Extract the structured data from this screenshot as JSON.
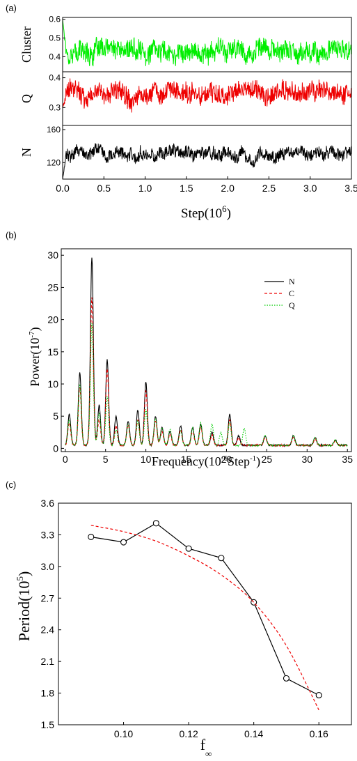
{
  "chart_data": [
    {
      "type": "line",
      "panel_label": "(a)",
      "xlabel": "Step(10",
      "xlabel_sup": "6",
      "xlabel_close": ")",
      "xlim": [
        0,
        3.5
      ],
      "xticks": [
        "0.0",
        "0.5",
        "1.0",
        "1.5",
        "2.0",
        "2.5",
        "3.0",
        "3.5"
      ],
      "subplots": [
        {
          "ylabel": "Cluster",
          "ylim": [
            0.32,
            0.61
          ],
          "yticks": [
            0.4,
            0.5,
            0.6
          ],
          "ytick_labels": [
            "0.4",
            "0.5",
            "0.6"
          ],
          "series": [
            {
              "color": "#00ee00",
              "mean": 0.43,
              "amplitude": 0.08,
              "start": 0.6
            }
          ]
        },
        {
          "ylabel": "Q",
          "ylim": [
            0.24,
            0.42
          ],
          "yticks": [
            0.3,
            0.4
          ],
          "ytick_labels": [
            "0.3",
            "0.4"
          ],
          "series": [
            {
              "color": "#ee0000",
              "mean": 0.35,
              "amplitude": 0.05,
              "start": 0.3
            }
          ]
        },
        {
          "ylabel": "N",
          "ylim": [
            100,
            165
          ],
          "yticks": [
            120,
            160
          ],
          "ytick_labels": [
            "120",
            "160"
          ],
          "series": [
            {
              "color": "#000000",
              "mean": 131,
              "amplitude": 12,
              "start": 100
            }
          ]
        }
      ]
    },
    {
      "type": "line",
      "panel_label": "(b)",
      "xlabel": "Frequency(10",
      "xlabel_sup1": "-6",
      "xlabel_mid": "Step",
      "xlabel_sup2": "-1",
      "xlabel_close": ")",
      "ylabel": "Power(10",
      "ylabel_sup": "-7",
      "ylabel_close": ")",
      "xlim": [
        -0.5,
        35.5
      ],
      "ylim": [
        -0.5,
        31
      ],
      "xticks": [
        0,
        5,
        10,
        15,
        20,
        25,
        30,
        35
      ],
      "xtick_labels": [
        "0",
        "5",
        "10",
        "15",
        "20",
        "25",
        "30",
        "35"
      ],
      "yticks": [
        0,
        5,
        10,
        15,
        20,
        25,
        30
      ],
      "ytick_labels": [
        "0",
        "5",
        "10",
        "15",
        "20",
        "25",
        "30"
      ],
      "legend": "top-right",
      "series": [
        {
          "name": "N",
          "color": "#000000",
          "dash": "",
          "peaks": [
            [
              0.5,
              4.8
            ],
            [
              1.8,
              11.3
            ],
            [
              3.3,
              29.2
            ],
            [
              4.2,
              6.2
            ],
            [
              5.2,
              13.3
            ],
            [
              6.3,
              4.5
            ],
            [
              7.8,
              3.8
            ],
            [
              9.0,
              5.5
            ],
            [
              10.0,
              9.8
            ],
            [
              11.2,
              4.5
            ],
            [
              12.0,
              2.8
            ],
            [
              13.0,
              2.2
            ],
            [
              14.3,
              3.0
            ],
            [
              15.8,
              2.8
            ],
            [
              16.8,
              3.3
            ],
            [
              18.2,
              2.0
            ],
            [
              20.4,
              4.8
            ],
            [
              21.5,
              1.5
            ],
            [
              24.8,
              1.5
            ],
            [
              28.3,
              1.5
            ],
            [
              31.0,
              1.2
            ],
            [
              33.5,
              0.8
            ]
          ]
        },
        {
          "name": "C",
          "color": "#ee0000",
          "dash": "4,3",
          "peaks": [
            [
              0.5,
              3.5
            ],
            [
              1.8,
              9.0
            ],
            [
              3.3,
              23.0
            ],
            [
              4.2,
              4.0
            ],
            [
              5.2,
              11.8
            ],
            [
              6.3,
              3.0
            ],
            [
              7.8,
              3.2
            ],
            [
              9.0,
              4.0
            ],
            [
              10.0,
              8.5
            ],
            [
              11.2,
              3.8
            ],
            [
              12.0,
              2.2
            ],
            [
              13.0,
              1.8
            ],
            [
              14.3,
              2.4
            ],
            [
              15.8,
              2.2
            ],
            [
              16.8,
              2.8
            ],
            [
              18.2,
              1.6
            ],
            [
              20.4,
              4.0
            ],
            [
              21.5,
              1.2
            ],
            [
              24.8,
              1.2
            ],
            [
              28.3,
              1.2
            ],
            [
              31.0,
              1.0
            ],
            [
              33.5,
              0.7
            ]
          ]
        },
        {
          "name": "Q",
          "color": "#00cc00",
          "dash": "1.5,2",
          "peaks": [
            [
              0.5,
              4.0
            ],
            [
              1.8,
              9.5
            ],
            [
              3.3,
              19.0
            ],
            [
              4.2,
              5.0
            ],
            [
              5.2,
              7.5
            ],
            [
              6.3,
              2.5
            ],
            [
              7.8,
              3.2
            ],
            [
              9.0,
              3.8
            ],
            [
              10.0,
              5.5
            ],
            [
              11.2,
              4.2
            ],
            [
              12.0,
              2.8
            ],
            [
              13.0,
              2.5
            ],
            [
              14.3,
              2.2
            ],
            [
              15.8,
              2.6
            ],
            [
              16.8,
              3.4
            ],
            [
              18.2,
              3.3
            ],
            [
              19.3,
              2.0
            ],
            [
              20.4,
              3.5
            ],
            [
              22.2,
              2.6
            ],
            [
              24.8,
              1.6
            ],
            [
              28.3,
              1.5
            ],
            [
              31.0,
              1.3
            ],
            [
              33.5,
              0.8
            ]
          ]
        }
      ]
    },
    {
      "type": "line",
      "panel_label": "(c)",
      "xlabel": "f",
      "xlabel_sub": "∞",
      "ylabel": "Period(10",
      "ylabel_sup": "5",
      "ylabel_close": ")",
      "xlim": [
        0.08,
        0.17
      ],
      "ylim": [
        1.5,
        3.6
      ],
      "xticks": [
        0.1,
        0.12,
        0.14,
        0.16
      ],
      "xtick_labels": [
        "0.10",
        "0.12",
        "0.14",
        "0.16"
      ],
      "yticks": [
        1.5,
        1.8,
        2.1,
        2.4,
        2.7,
        3.0,
        3.3,
        3.6
      ],
      "ytick_labels": [
        "1.5",
        "1.8",
        "2.1",
        "2.4",
        "2.7",
        "3.0",
        "3.3",
        "3.6"
      ],
      "series": [
        {
          "color": "#000000",
          "dash": "",
          "markers": true,
          "x": [
            0.09,
            0.1,
            0.11,
            0.12,
            0.13,
            0.14,
            0.15,
            0.16
          ],
          "y": [
            3.28,
            3.23,
            3.41,
            3.17,
            3.08,
            2.66,
            1.94,
            1.78
          ]
        },
        {
          "color": "#ee0000",
          "dash": "4,3",
          "markers": false,
          "x": [
            0.09,
            0.1,
            0.11,
            0.12,
            0.13,
            0.14,
            0.15,
            0.16
          ],
          "y": [
            3.39,
            3.33,
            3.24,
            3.1,
            2.92,
            2.66,
            2.25,
            1.64
          ]
        }
      ]
    }
  ]
}
